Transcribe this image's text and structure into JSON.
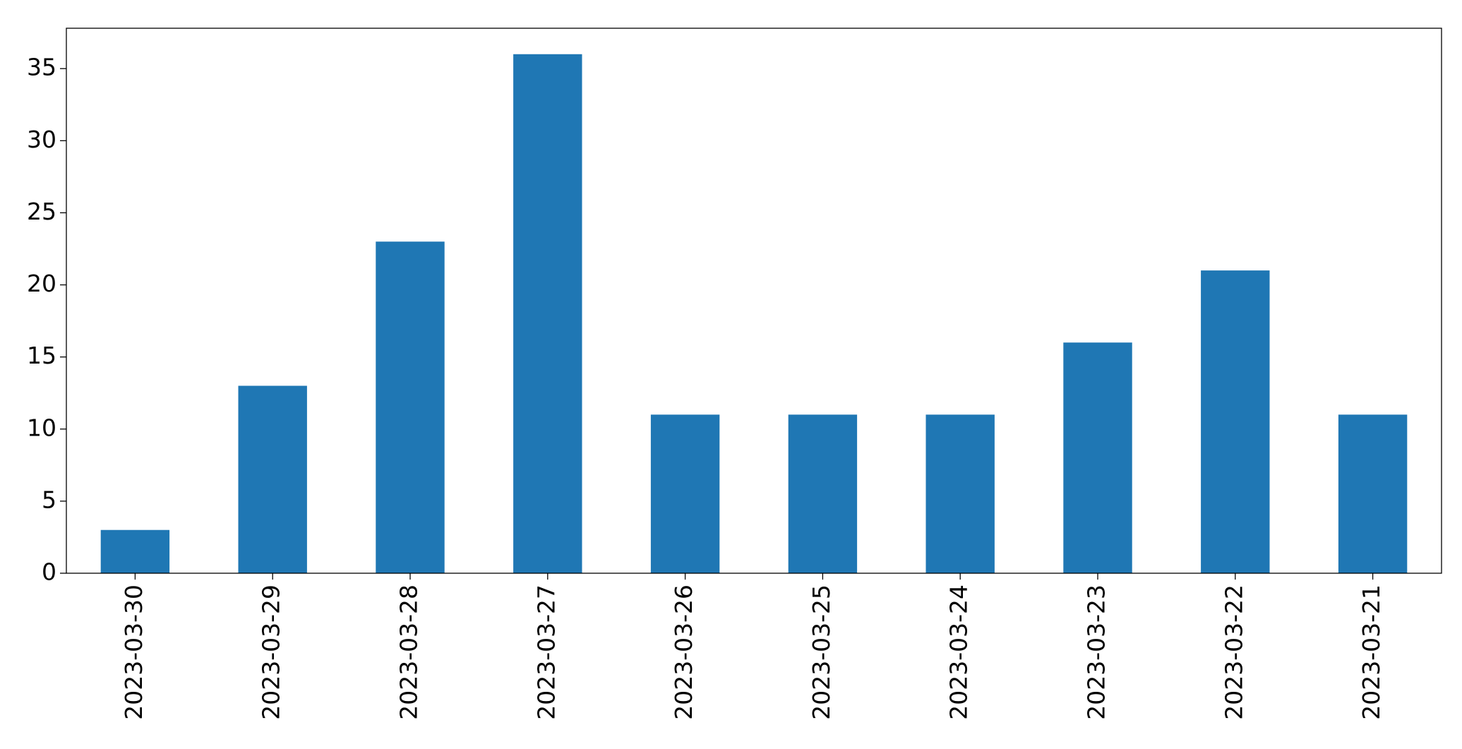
{
  "chart_data": {
    "type": "bar",
    "categories": [
      "2023-03-30",
      "2023-03-29",
      "2023-03-28",
      "2023-03-27",
      "2023-03-26",
      "2023-03-25",
      "2023-03-24",
      "2023-03-23",
      "2023-03-22",
      "2023-03-21"
    ],
    "values": [
      3,
      13,
      23,
      36,
      11,
      11,
      11,
      16,
      21,
      11
    ],
    "color": "#1f77b4",
    "ylim": [
      0,
      37.8
    ],
    "yticks": [
      0,
      5,
      10,
      15,
      20,
      25,
      30,
      35
    ],
    "grid": false
  }
}
